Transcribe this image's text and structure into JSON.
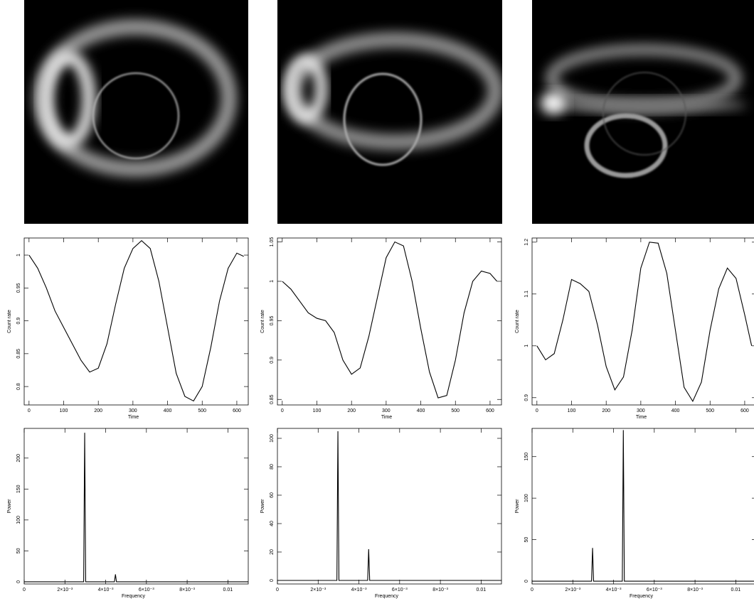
{
  "chart_data": [
    {
      "type": "line",
      "xlabel": "Time",
      "ylabel": "Count rate",
      "color": "#000000",
      "x": [
        0,
        25,
        50,
        75,
        100,
        125,
        150,
        175,
        200,
        225,
        250,
        275,
        300,
        325,
        350,
        375,
        400,
        425,
        450,
        475,
        500,
        525,
        550,
        575,
        600,
        620
      ],
      "values": [
        1.0,
        0.98,
        0.95,
        0.915,
        0.89,
        0.865,
        0.84,
        0.822,
        0.828,
        0.865,
        0.925,
        0.98,
        1.01,
        1.022,
        1.01,
        0.96,
        0.89,
        0.82,
        0.785,
        0.778,
        0.8,
        0.86,
        0.93,
        0.98,
        1.003,
        0.998
      ],
      "xlim": [
        -14,
        633
      ],
      "ylim": [
        0.772,
        1.026
      ],
      "xticks": [
        0,
        100,
        200,
        300,
        400,
        500,
        600
      ],
      "yticks": [
        0.8,
        0.85,
        0.9,
        0.95,
        1
      ]
    },
    {
      "type": "line",
      "xlabel": "Time",
      "ylabel": "Count rate",
      "color": "#000000",
      "x": [
        0,
        25,
        50,
        75,
        100,
        125,
        150,
        175,
        200,
        225,
        250,
        275,
        300,
        325,
        350,
        375,
        400,
        425,
        450,
        475,
        500,
        525,
        550,
        575,
        600,
        620
      ],
      "values": [
        1.0,
        0.99,
        0.975,
        0.96,
        0.953,
        0.95,
        0.935,
        0.9,
        0.882,
        0.89,
        0.93,
        0.98,
        1.03,
        1.05,
        1.045,
        1.0,
        0.94,
        0.885,
        0.852,
        0.855,
        0.9,
        0.96,
        1.0,
        1.013,
        1.01,
        1.0
      ],
      "xlim": [
        -14,
        633
      ],
      "ylim": [
        0.843,
        1.055
      ],
      "xticks": [
        0,
        100,
        200,
        300,
        400,
        500,
        600
      ],
      "yticks": [
        0.85,
        0.9,
        0.95,
        1,
        1.05
      ]
    },
    {
      "type": "line",
      "xlabel": "Time",
      "ylabel": "Count rate",
      "color": "#000000",
      "x": [
        0,
        25,
        50,
        75,
        100,
        125,
        150,
        175,
        200,
        225,
        250,
        275,
        300,
        325,
        350,
        375,
        400,
        425,
        450,
        475,
        500,
        525,
        550,
        575,
        600,
        620
      ],
      "values": [
        1.0,
        0.973,
        0.985,
        1.05,
        1.128,
        1.12,
        1.105,
        1.04,
        0.96,
        0.915,
        0.94,
        1.03,
        1.15,
        1.2,
        1.198,
        1.14,
        1.03,
        0.92,
        0.893,
        0.93,
        1.03,
        1.11,
        1.15,
        1.13,
        1.06,
        1.0
      ],
      "xlim": [
        -14,
        633
      ],
      "ylim": [
        0.886,
        1.208
      ],
      "xticks": [
        0,
        100,
        200,
        300,
        400,
        500,
        600
      ],
      "yticks": [
        0.9,
        1,
        1.1,
        1.2
      ]
    },
    {
      "type": "line",
      "xlabel": "Frequency",
      "ylabel": "Power",
      "color": "#000000",
      "x": [
        0,
        0.00292,
        0.00297,
        0.00302,
        0.00443,
        0.00448,
        0.00453,
        0.011
      ],
      "values": [
        0,
        0,
        241,
        0,
        0,
        12,
        0,
        0
      ],
      "xlim": [
        0,
        0.011
      ],
      "ylim": [
        -3.5,
        248
      ],
      "xticks": [
        0,
        {
          "value": 0.002,
          "label": "2×10⁻³"
        },
        {
          "value": 0.004,
          "label": "4×10⁻³"
        },
        {
          "value": 0.006,
          "label": "6×10⁻³"
        },
        {
          "value": 0.008,
          "label": "8×10⁻³"
        },
        0.01
      ],
      "yticks": [
        0,
        50,
        100,
        150,
        200
      ]
    },
    {
      "type": "line",
      "xlabel": "Frequency",
      "ylabel": "Power",
      "color": "#000000",
      "x": [
        0,
        0.00292,
        0.00297,
        0.00302,
        0.00443,
        0.00448,
        0.00453,
        0.011
      ],
      "values": [
        0,
        0,
        105,
        0,
        0,
        22,
        0,
        0
      ],
      "xlim": [
        0,
        0.011
      ],
      "ylim": [
        -2.5,
        107
      ],
      "xticks": [
        0,
        {
          "value": 0.002,
          "label": "2×10⁻³"
        },
        {
          "value": 0.004,
          "label": "4×10⁻³"
        },
        {
          "value": 0.006,
          "label": "6×10⁻³"
        },
        {
          "value": 0.008,
          "label": "8×10⁻³"
        },
        0.01
      ],
      "yticks": [
        0,
        20,
        40,
        60,
        80,
        100
      ]
    },
    {
      "type": "line",
      "xlabel": "Frequency",
      "ylabel": "Power",
      "color": "#000000",
      "x": [
        0,
        0.00292,
        0.00297,
        0.00302,
        0.00443,
        0.00448,
        0.00453,
        0.011
      ],
      "values": [
        0,
        0,
        40,
        0,
        0,
        182,
        0,
        0
      ],
      "xlim": [
        0,
        0.011
      ],
      "ylim": [
        -3.4,
        184
      ],
      "xticks": [
        0,
        {
          "value": 0.002,
          "label": "2×10⁻³"
        },
        {
          "value": 0.004,
          "label": "4×10⁻³"
        },
        {
          "value": 0.006,
          "label": "6×10⁻³"
        },
        {
          "value": 0.008,
          "label": "8×10⁻³"
        },
        0.01
      ],
      "yticks": [
        0,
        50,
        100,
        150
      ]
    }
  ]
}
